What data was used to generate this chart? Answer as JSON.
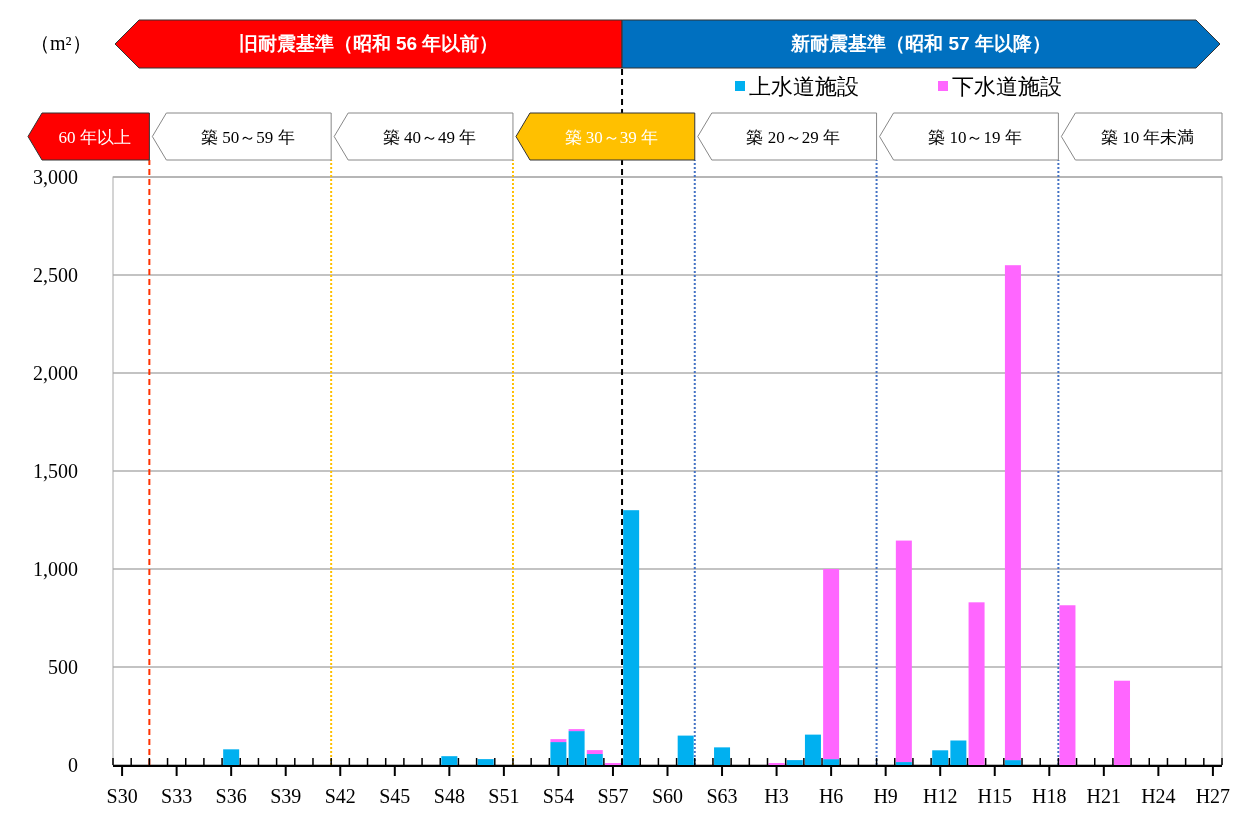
{
  "chart_data": {
    "type": "bar",
    "stacked": true,
    "categories": [
      "S30",
      null,
      null,
      "S33",
      null,
      null,
      "S36",
      null,
      null,
      "S39",
      null,
      null,
      "S42",
      null,
      null,
      "S45",
      null,
      null,
      "S48",
      null,
      null,
      "S51",
      null,
      null,
      "S54",
      null,
      null,
      "S57",
      null,
      null,
      "S60",
      null,
      null,
      "S63",
      null,
      null,
      "H3",
      null,
      null,
      "H6",
      null,
      null,
      "H9",
      null,
      null,
      "H12",
      null,
      null,
      "H15",
      null,
      null,
      "H18",
      null,
      null,
      "H21",
      null,
      null,
      "H24",
      null,
      null,
      "H27"
    ],
    "series": [
      {
        "name": "上水道施設",
        "color": "#00b0f0",
        "values": [
          0,
          0,
          0,
          0,
          0,
          0,
          80,
          0,
          0,
          0,
          0,
          0,
          0,
          0,
          0,
          0,
          0,
          0,
          45,
          0,
          30,
          0,
          0,
          0,
          117,
          173,
          56,
          0,
          1300,
          0,
          0,
          150,
          0,
          90,
          0,
          0,
          0,
          25,
          155,
          30,
          0,
          0,
          0,
          15,
          0,
          75,
          125,
          0,
          0,
          25,
          0,
          0,
          0,
          0,
          0,
          0,
          0,
          0,
          0,
          0,
          0
        ]
      },
      {
        "name": "下水道施設",
        "color": "#ff66ff",
        "values": [
          0,
          0,
          0,
          0,
          0,
          0,
          0,
          0,
          0,
          0,
          0,
          0,
          0,
          0,
          0,
          0,
          0,
          0,
          0,
          0,
          0,
          0,
          0,
          0,
          15,
          10,
          20,
          10,
          0,
          0,
          0,
          0,
          0,
          0,
          0,
          0,
          10,
          0,
          0,
          970,
          0,
          0,
          0,
          1130,
          0,
          0,
          0,
          830,
          0,
          2525,
          0,
          0,
          815,
          0,
          0,
          430,
          0,
          0,
          0,
          0,
          0
        ]
      }
    ],
    "ylim": [
      0,
      3000
    ],
    "yticks": [
      0,
      500,
      {
        "value": 1000,
        "label": "1,000"
      },
      {
        "value": 1500,
        "label": "1,500"
      },
      {
        "value": 2000,
        "label": "2,000"
      },
      {
        "value": 2500,
        "label": "2,500"
      },
      {
        "value": 3000,
        "label": "3,000"
      }
    ],
    "grid": "y",
    "legend": "top right",
    "annotations": [
      "（m²）",
      "旧耐震基準（昭和 56 年以前）",
      "新耐震基準（昭和 57 年以降）",
      "60 年以上",
      "築 50～59 年",
      "築 40～49 年",
      "築 30～39 年",
      "築 20～29 年",
      "築 10～19 年",
      "築 10 年未満"
    ]
  }
}
